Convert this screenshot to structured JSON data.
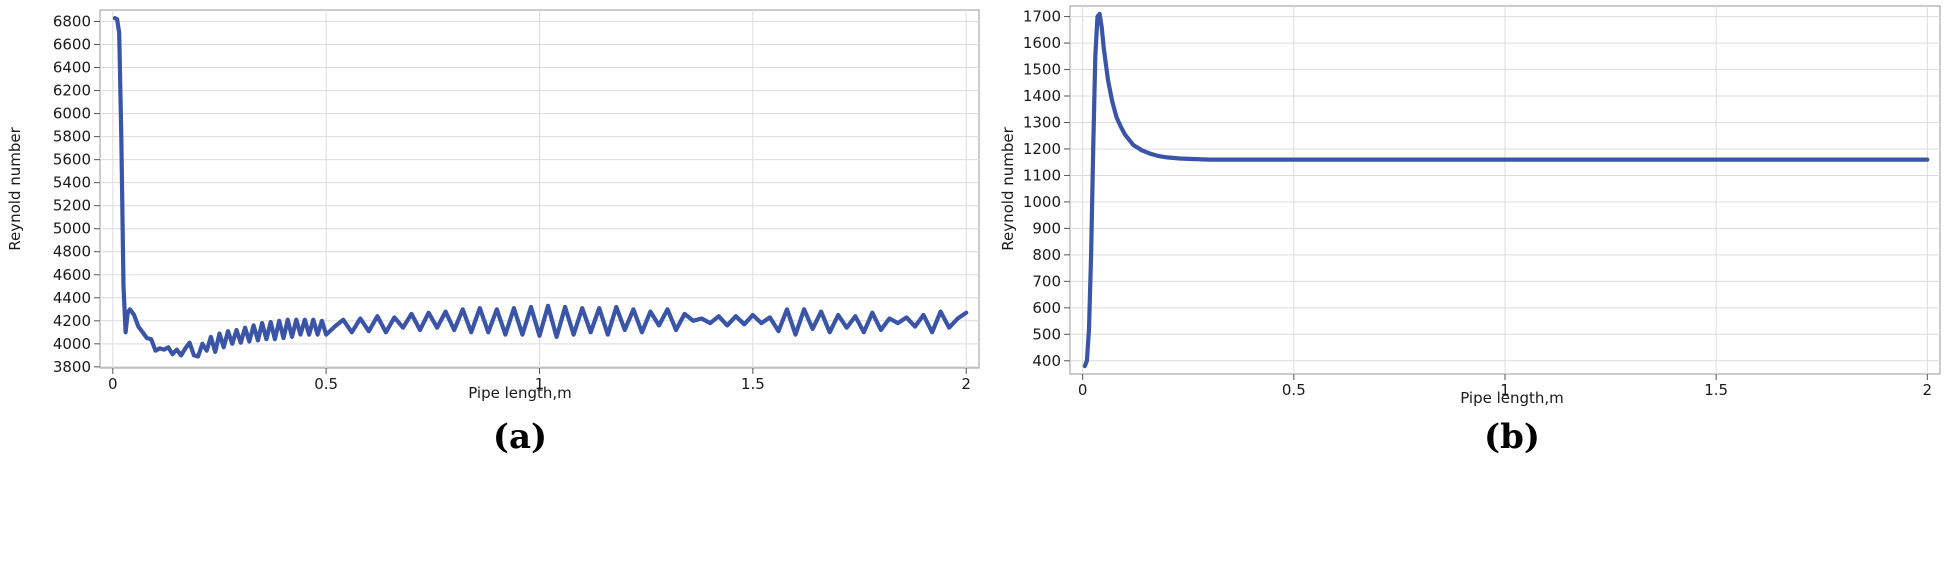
{
  "colors": {
    "series": "#3a55a8"
  },
  "chart_data": [
    {
      "id": "a",
      "type": "line",
      "panel_label": "(a)",
      "xlabel": "Pipe length,m",
      "ylabel": "Reynold number",
      "xlim": [
        -0.03,
        2.03
      ],
      "ylim": [
        3790,
        6900
      ],
      "xticks": [
        0,
        0.5,
        1,
        1.5,
        2
      ],
      "xtick_labels": [
        "0",
        "0.5",
        "1",
        "1.5",
        "2"
      ],
      "yticks": [
        3800,
        4000,
        4200,
        4400,
        4600,
        4800,
        5000,
        5200,
        5400,
        5600,
        5800,
        6000,
        6200,
        6400,
        6600,
        6800
      ],
      "ytick_labels": [
        "3800",
        "4000",
        "4200",
        "4400",
        "4600",
        "4800",
        "5000",
        "5200",
        "5400",
        "5600",
        "5800",
        "6000",
        "6200",
        "6400",
        "6600",
        "6800"
      ],
      "grid": true,
      "series": [
        {
          "x": [
            0.005,
            0.01,
            0.015,
            0.02,
            0.025,
            0.03,
            0.035,
            0.04,
            0.05,
            0.06,
            0.07,
            0.08,
            0.09,
            0.1,
            0.11,
            0.12,
            0.13,
            0.14,
            0.15,
            0.16,
            0.17,
            0.18,
            0.19,
            0.2,
            0.21,
            0.22,
            0.23,
            0.24,
            0.25,
            0.26,
            0.27,
            0.28,
            0.29,
            0.3,
            0.31,
            0.32,
            0.33,
            0.34,
            0.35,
            0.36,
            0.37,
            0.38,
            0.39,
            0.4,
            0.41,
            0.42,
            0.43,
            0.44,
            0.45,
            0.46,
            0.47,
            0.48,
            0.49,
            0.5,
            0.52,
            0.54,
            0.56,
            0.58,
            0.6,
            0.62,
            0.64,
            0.66,
            0.68,
            0.7,
            0.72,
            0.74,
            0.76,
            0.78,
            0.8,
            0.82,
            0.84,
            0.86,
            0.88,
            0.9,
            0.92,
            0.94,
            0.96,
            0.98,
            1.0,
            1.02,
            1.04,
            1.06,
            1.08,
            1.1,
            1.12,
            1.14,
            1.16,
            1.18,
            1.2,
            1.22,
            1.24,
            1.26,
            1.28,
            1.3,
            1.32,
            1.34,
            1.36,
            1.38,
            1.4,
            1.42,
            1.44,
            1.46,
            1.48,
            1.5,
            1.52,
            1.54,
            1.56,
            1.58,
            1.6,
            1.62,
            1.64,
            1.66,
            1.68,
            1.7,
            1.72,
            1.74,
            1.76,
            1.78,
            1.8,
            1.82,
            1.84,
            1.86,
            1.88,
            1.9,
            1.92,
            1.94,
            1.96,
            1.98,
            2.0
          ],
          "y": [
            6830,
            6820,
            6700,
            5800,
            4500,
            4100,
            4270,
            4300,
            4250,
            4150,
            4100,
            4050,
            4040,
            3940,
            3960,
            3950,
            3970,
            3910,
            3950,
            3900,
            3960,
            4010,
            3900,
            3890,
            4000,
            3940,
            4060,
            3930,
            4090,
            3970,
            4110,
            4000,
            4120,
            4010,
            4140,
            4020,
            4160,
            4030,
            4180,
            4040,
            4190,
            4040,
            4200,
            4050,
            4210,
            4060,
            4210,
            4080,
            4210,
            4080,
            4210,
            4080,
            4200,
            4080,
            4150,
            4210,
            4100,
            4220,
            4110,
            4240,
            4100,
            4230,
            4140,
            4260,
            4120,
            4270,
            4140,
            4280,
            4120,
            4300,
            4100,
            4310,
            4100,
            4300,
            4080,
            4310,
            4080,
            4320,
            4070,
            4330,
            4060,
            4320,
            4080,
            4310,
            4100,
            4310,
            4080,
            4320,
            4120,
            4300,
            4100,
            4280,
            4160,
            4300,
            4120,
            4260,
            4200,
            4220,
            4180,
            4240,
            4160,
            4240,
            4170,
            4250,
            4180,
            4230,
            4110,
            4300,
            4080,
            4300,
            4130,
            4280,
            4100,
            4250,
            4140,
            4240,
            4100,
            4270,
            4120,
            4220,
            4180,
            4230,
            4150,
            4250,
            4100,
            4280,
            4140,
            4220,
            4270
          ]
        }
      ]
    },
    {
      "id": "b",
      "type": "line",
      "panel_label": "(b)",
      "xlabel": "Pipe length,m",
      "ylabel": "Reynold number",
      "xlim": [
        -0.03,
        2.03
      ],
      "ylim": [
        350,
        1740
      ],
      "xticks": [
        0,
        0.5,
        1,
        1.5,
        2
      ],
      "xtick_labels": [
        "0",
        "0.5",
        "1",
        "1.5",
        "2"
      ],
      "yticks": [
        400,
        500,
        600,
        700,
        800,
        900,
        1000,
        1100,
        1200,
        1300,
        1400,
        1500,
        1600,
        1700
      ],
      "ytick_labels": [
        "400",
        "500",
        "600",
        "700",
        "800",
        "900",
        "1000",
        "1100",
        "1200",
        "1300",
        "1400",
        "1500",
        "1600",
        "1700"
      ],
      "grid": true,
      "series": [
        {
          "x": [
            0.005,
            0.01,
            0.015,
            0.02,
            0.025,
            0.03,
            0.035,
            0.04,
            0.045,
            0.05,
            0.06,
            0.07,
            0.08,
            0.09,
            0.1,
            0.12,
            0.14,
            0.16,
            0.18,
            0.2,
            0.23,
            0.26,
            0.3,
            0.35,
            0.4,
            0.5,
            0.6,
            0.8,
            1.0,
            1.2,
            1.4,
            1.6,
            1.8,
            1.9,
            2.0
          ],
          "y": [
            380,
            400,
            520,
            800,
            1200,
            1550,
            1700,
            1710,
            1660,
            1580,
            1460,
            1380,
            1320,
            1285,
            1255,
            1215,
            1195,
            1182,
            1173,
            1168,
            1164,
            1162,
            1160,
            1160,
            1160,
            1160,
            1160,
            1160,
            1160,
            1160,
            1160,
            1160,
            1160,
            1160,
            1160
          ]
        }
      ]
    }
  ]
}
